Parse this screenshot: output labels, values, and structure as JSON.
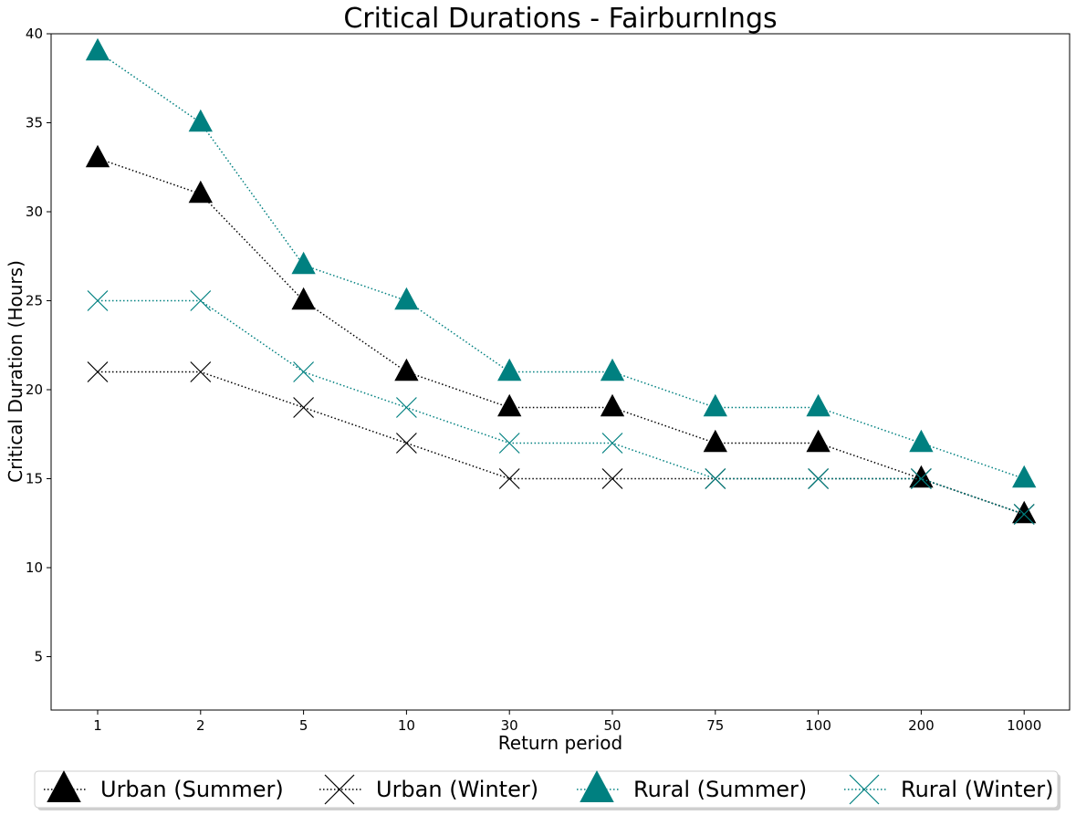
{
  "chart_data": {
    "type": "line",
    "title": "Critical Durations - FairburnIngs",
    "xlabel": "Return period",
    "ylabel": "Critical Duration (Hours)",
    "categories": [
      "1",
      "2",
      "5",
      "10",
      "30",
      "50",
      "75",
      "100",
      "200",
      "1000"
    ],
    "ylim": [
      2,
      40
    ],
    "yticks": [
      5,
      10,
      15,
      20,
      25,
      30,
      35,
      40
    ],
    "grid": false,
    "legend_position": "bottom-center",
    "series": [
      {
        "name": "Urban (Summer)",
        "color": "#000000",
        "marker": "triangle",
        "values": [
          33,
          31,
          25,
          21,
          19,
          19,
          17,
          17,
          15,
          13
        ]
      },
      {
        "name": "Urban (Winter)",
        "color": "#000000",
        "marker": "x",
        "values": [
          21,
          21,
          19,
          17,
          15,
          15,
          15,
          15,
          15,
          13
        ]
      },
      {
        "name": "Rural (Summer)",
        "color": "#008080",
        "marker": "triangle",
        "values": [
          39,
          35,
          27,
          25,
          21,
          21,
          19,
          19,
          17,
          15
        ]
      },
      {
        "name": "Rural (Winter)",
        "color": "#008080",
        "marker": "x",
        "values": [
          25,
          25,
          21,
          19,
          17,
          17,
          15,
          15,
          15,
          13
        ]
      }
    ]
  }
}
